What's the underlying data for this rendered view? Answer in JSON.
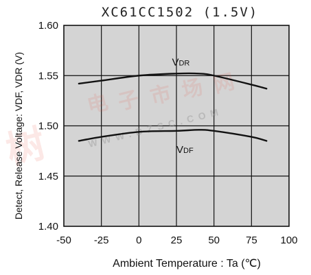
{
  "chart_data": {
    "type": "line",
    "title": "XC61CC1502 (1.5V)",
    "xlabel": "Ambient Temperature : Ta (℃)",
    "ylabel": "Detect, Release Voltage: VDF, VDR (V)",
    "xlim": [
      -50,
      100
    ],
    "ylim": [
      1.4,
      1.6
    ],
    "x_ticks": [
      -50,
      -25,
      0,
      25,
      50,
      75,
      100
    ],
    "y_ticks": [
      1.4,
      1.45,
      1.5,
      1.55,
      1.6
    ],
    "x_tick_labels": [
      "-50",
      "-25",
      "0",
      "25",
      "50",
      "75",
      "100"
    ],
    "y_tick_labels": [
      "1.40",
      "1.45",
      "1.50",
      "1.55",
      "1.60"
    ],
    "grid": true,
    "series": [
      {
        "name": "VDR",
        "x": [
          -40,
          -25,
          0,
          25,
          40,
          50,
          75,
          85
        ],
        "y": [
          1.542,
          1.545,
          1.55,
          1.552,
          1.552,
          1.55,
          1.541,
          1.537
        ]
      },
      {
        "name": "VDF",
        "x": [
          -40,
          -25,
          0,
          25,
          40,
          50,
          75,
          85
        ],
        "y": [
          1.485,
          1.489,
          1.494,
          1.495,
          1.496,
          1.495,
          1.489,
          1.485
        ]
      }
    ],
    "series_labels": [
      {
        "main": "V",
        "sub": "DR",
        "series": "VDR",
        "x": 22,
        "y": 1.56
      },
      {
        "main": "V",
        "sub": "DF",
        "series": "VDF",
        "x": 25,
        "y": 1.473
      }
    ],
    "colors": {
      "plot_background": "#d4d4d4",
      "grid": "#111111",
      "line": "#111111"
    }
  },
  "watermark": {
    "chinese": "树电子市场网",
    "url": "WWW.DZSC.COM",
    "color": "#e74c3c"
  }
}
